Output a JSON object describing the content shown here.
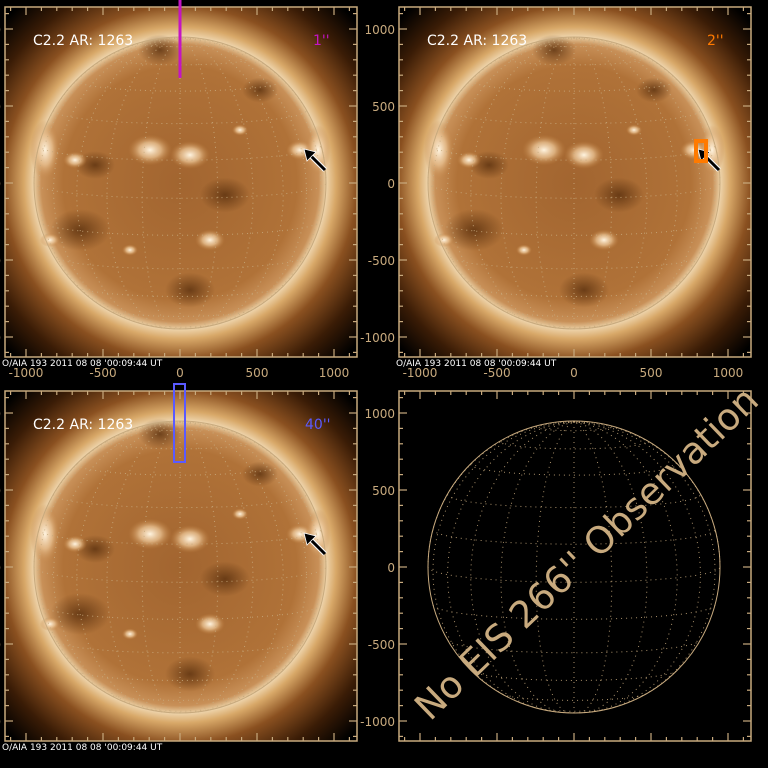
{
  "colors": {
    "axis": "#c8aa7e",
    "magenta": "#c414c4",
    "orange": "#ff7a00",
    "blue": "#5a5aff",
    "label": "#ffffff",
    "arrow": "#000000"
  },
  "axis": {
    "ticks": [
      "-1000",
      "-500",
      "0",
      "500",
      "1000"
    ],
    "tick_values": [
      -1000,
      -500,
      0,
      500,
      1000
    ]
  },
  "footer": "O/AIA 193   2011 08 08 '00:09:44 UT",
  "panels": [
    {
      "title": "C2.2 AR: 1263",
      "slit": "1''",
      "slit_color": "#c414c4",
      "overlay": "line",
      "image": true,
      "x_labels": true
    },
    {
      "title": "C2.2 AR: 1263",
      "slit": "2''",
      "slit_color": "#ff7a00",
      "overlay": "small-box",
      "image": true,
      "x_labels": true
    },
    {
      "title": "C2.2 AR: 1263",
      "slit": "40''",
      "slit_color": "#5a5aff",
      "overlay": "tall-box",
      "image": true,
      "x_labels": false
    },
    {
      "title": "",
      "slit": "",
      "overlay": "none",
      "image": false,
      "x_labels": false,
      "message": "No EIS 266'' Observation"
    }
  ]
}
